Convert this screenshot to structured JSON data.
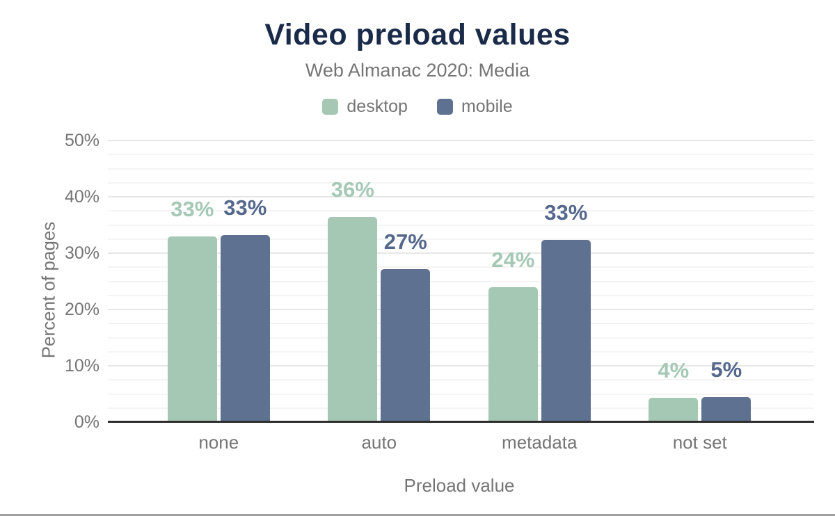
{
  "header": {
    "title": "Video preload values",
    "subtitle": "Web Almanac 2020: Media"
  },
  "colors": {
    "title_text": "#1a2b49",
    "muted_text": "#757575",
    "axis_line": "#2d2d2d",
    "grid_major": "#e7e7e7",
    "grid_minor": "#f4f4f4",
    "desktop_series": "#a5c8b5",
    "mobile_series": "#5f7190",
    "desktop_value_label": "#a5c8b5",
    "mobile_value_label": "#54678c",
    "bottom_divider": "#a0a0a0"
  },
  "chart_data": {
    "type": "bar",
    "title": "Video preload values",
    "subtitle": "Web Almanac 2020: Media",
    "categories": [
      "none",
      "auto",
      "metadata",
      "not set"
    ],
    "series": [
      {
        "name": "desktop",
        "values": [
          33,
          36,
          24,
          4
        ],
        "value_labels": [
          "33%",
          "36%",
          "24%",
          "4%"
        ],
        "bar_heights_pct": [
          33.0,
          36.4,
          24.0,
          4.3
        ],
        "color": "#a5c8b5",
        "label_color": "#a5c8b5"
      },
      {
        "name": "mobile",
        "values": [
          33,
          27,
          33,
          5
        ],
        "value_labels": [
          "33%",
          "27%",
          "33%",
          "5%"
        ],
        "bar_heights_pct": [
          33.2,
          27.2,
          32.4,
          4.5
        ],
        "color": "#5f7190",
        "label_color": "#54678c"
      }
    ],
    "xlabel": "Preload value",
    "ylabel": "Percent of pages",
    "ylim": [
      0,
      50
    ],
    "yticks": [
      0,
      10,
      20,
      30,
      40,
      50
    ],
    "ytick_labels": [
      "0%",
      "10%",
      "20%",
      "30%",
      "40%",
      "50%"
    ],
    "minor_grid_step": 2.5,
    "grid": true,
    "legend_position": "top",
    "legend": [
      {
        "label": "desktop",
        "color": "#a5c8b5"
      },
      {
        "label": "mobile",
        "color": "#5f7190"
      }
    ]
  }
}
